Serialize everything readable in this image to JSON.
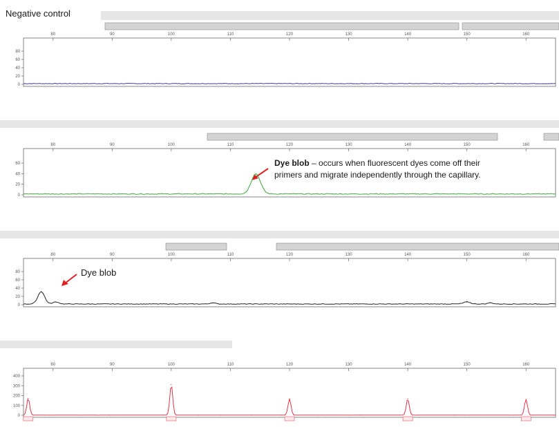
{
  "title": "Negative control",
  "annotations": {
    "dye_blob_main_bold": "Dye blob",
    "dye_blob_main_rest": " – occurs when fluorescent dyes come off their",
    "dye_blob_main_line2": "primers and migrate independently through the capillary.",
    "dye_blob_short": "Dye blob"
  },
  "colors": {
    "panel1_trace": "#3b3f8f",
    "panel2_trace": "#3aa63a",
    "panel3_trace": "#222222",
    "panel4_trace": "#e0354a",
    "arrow": "#e02020",
    "header_bar": "#e6e6e6",
    "bin_bar": "#d4d4d4"
  },
  "chart_data": [
    {
      "type": "line",
      "panel": 1,
      "trace_color": "blue",
      "x_ticks": [
        80,
        90,
        100,
        110,
        120,
        130,
        140,
        150,
        160
      ],
      "y_ticks": [
        0,
        20,
        40,
        60,
        80
      ],
      "xlim": [
        75,
        165
      ],
      "ylim": [
        0,
        90
      ],
      "x": [
        76,
        100,
        120,
        140,
        160,
        164
      ],
      "y": [
        1,
        1,
        1,
        1,
        1,
        1
      ],
      "peaks": []
    },
    {
      "type": "line",
      "panel": 2,
      "trace_color": "green",
      "x_ticks": [
        80,
        90,
        100,
        110,
        120,
        130,
        140,
        150,
        160
      ],
      "y_ticks": [
        0,
        20,
        40,
        60
      ],
      "xlim": [
        75,
        165
      ],
      "ylim": [
        0,
        70
      ],
      "peaks": [
        {
          "x": 114.3,
          "y": 38,
          "halfwidth": 1.1
        }
      ]
    },
    {
      "type": "line",
      "panel": 3,
      "trace_color": "black",
      "x_ticks": [
        80,
        90,
        100,
        110,
        120,
        130,
        140,
        150,
        160
      ],
      "y_ticks": [
        0,
        20,
        40,
        60,
        80
      ],
      "xlim": [
        75,
        165
      ],
      "ylim": [
        0,
        90
      ],
      "peaks": [
        {
          "x": 78.0,
          "y": 30,
          "halfwidth": 0.8
        },
        {
          "x": 80.5,
          "y": 5,
          "halfwidth": 0.7
        },
        {
          "x": 107,
          "y": 3,
          "halfwidth": 0.6
        },
        {
          "x": 150,
          "y": 5,
          "halfwidth": 0.8
        },
        {
          "x": 154,
          "y": 3,
          "halfwidth": 0.6
        }
      ]
    },
    {
      "type": "line",
      "panel": 4,
      "trace_color": "red",
      "x_ticks": [
        80,
        90,
        100,
        110,
        120,
        130,
        140,
        150,
        160
      ],
      "y_ticks": [
        0,
        100,
        200,
        300,
        400
      ],
      "xlim": [
        75,
        165
      ],
      "ylim": [
        0,
        440
      ],
      "peaks": [
        {
          "x": 75.8,
          "y": 170,
          "halfwidth": 0.35
        },
        {
          "x": 100.0,
          "y": 310,
          "halfwidth": 0.35
        },
        {
          "x": 120.0,
          "y": 165,
          "halfwidth": 0.35
        },
        {
          "x": 140.0,
          "y": 165,
          "halfwidth": 0.35
        },
        {
          "x": 160.0,
          "y": 160,
          "halfwidth": 0.35
        }
      ]
    }
  ]
}
